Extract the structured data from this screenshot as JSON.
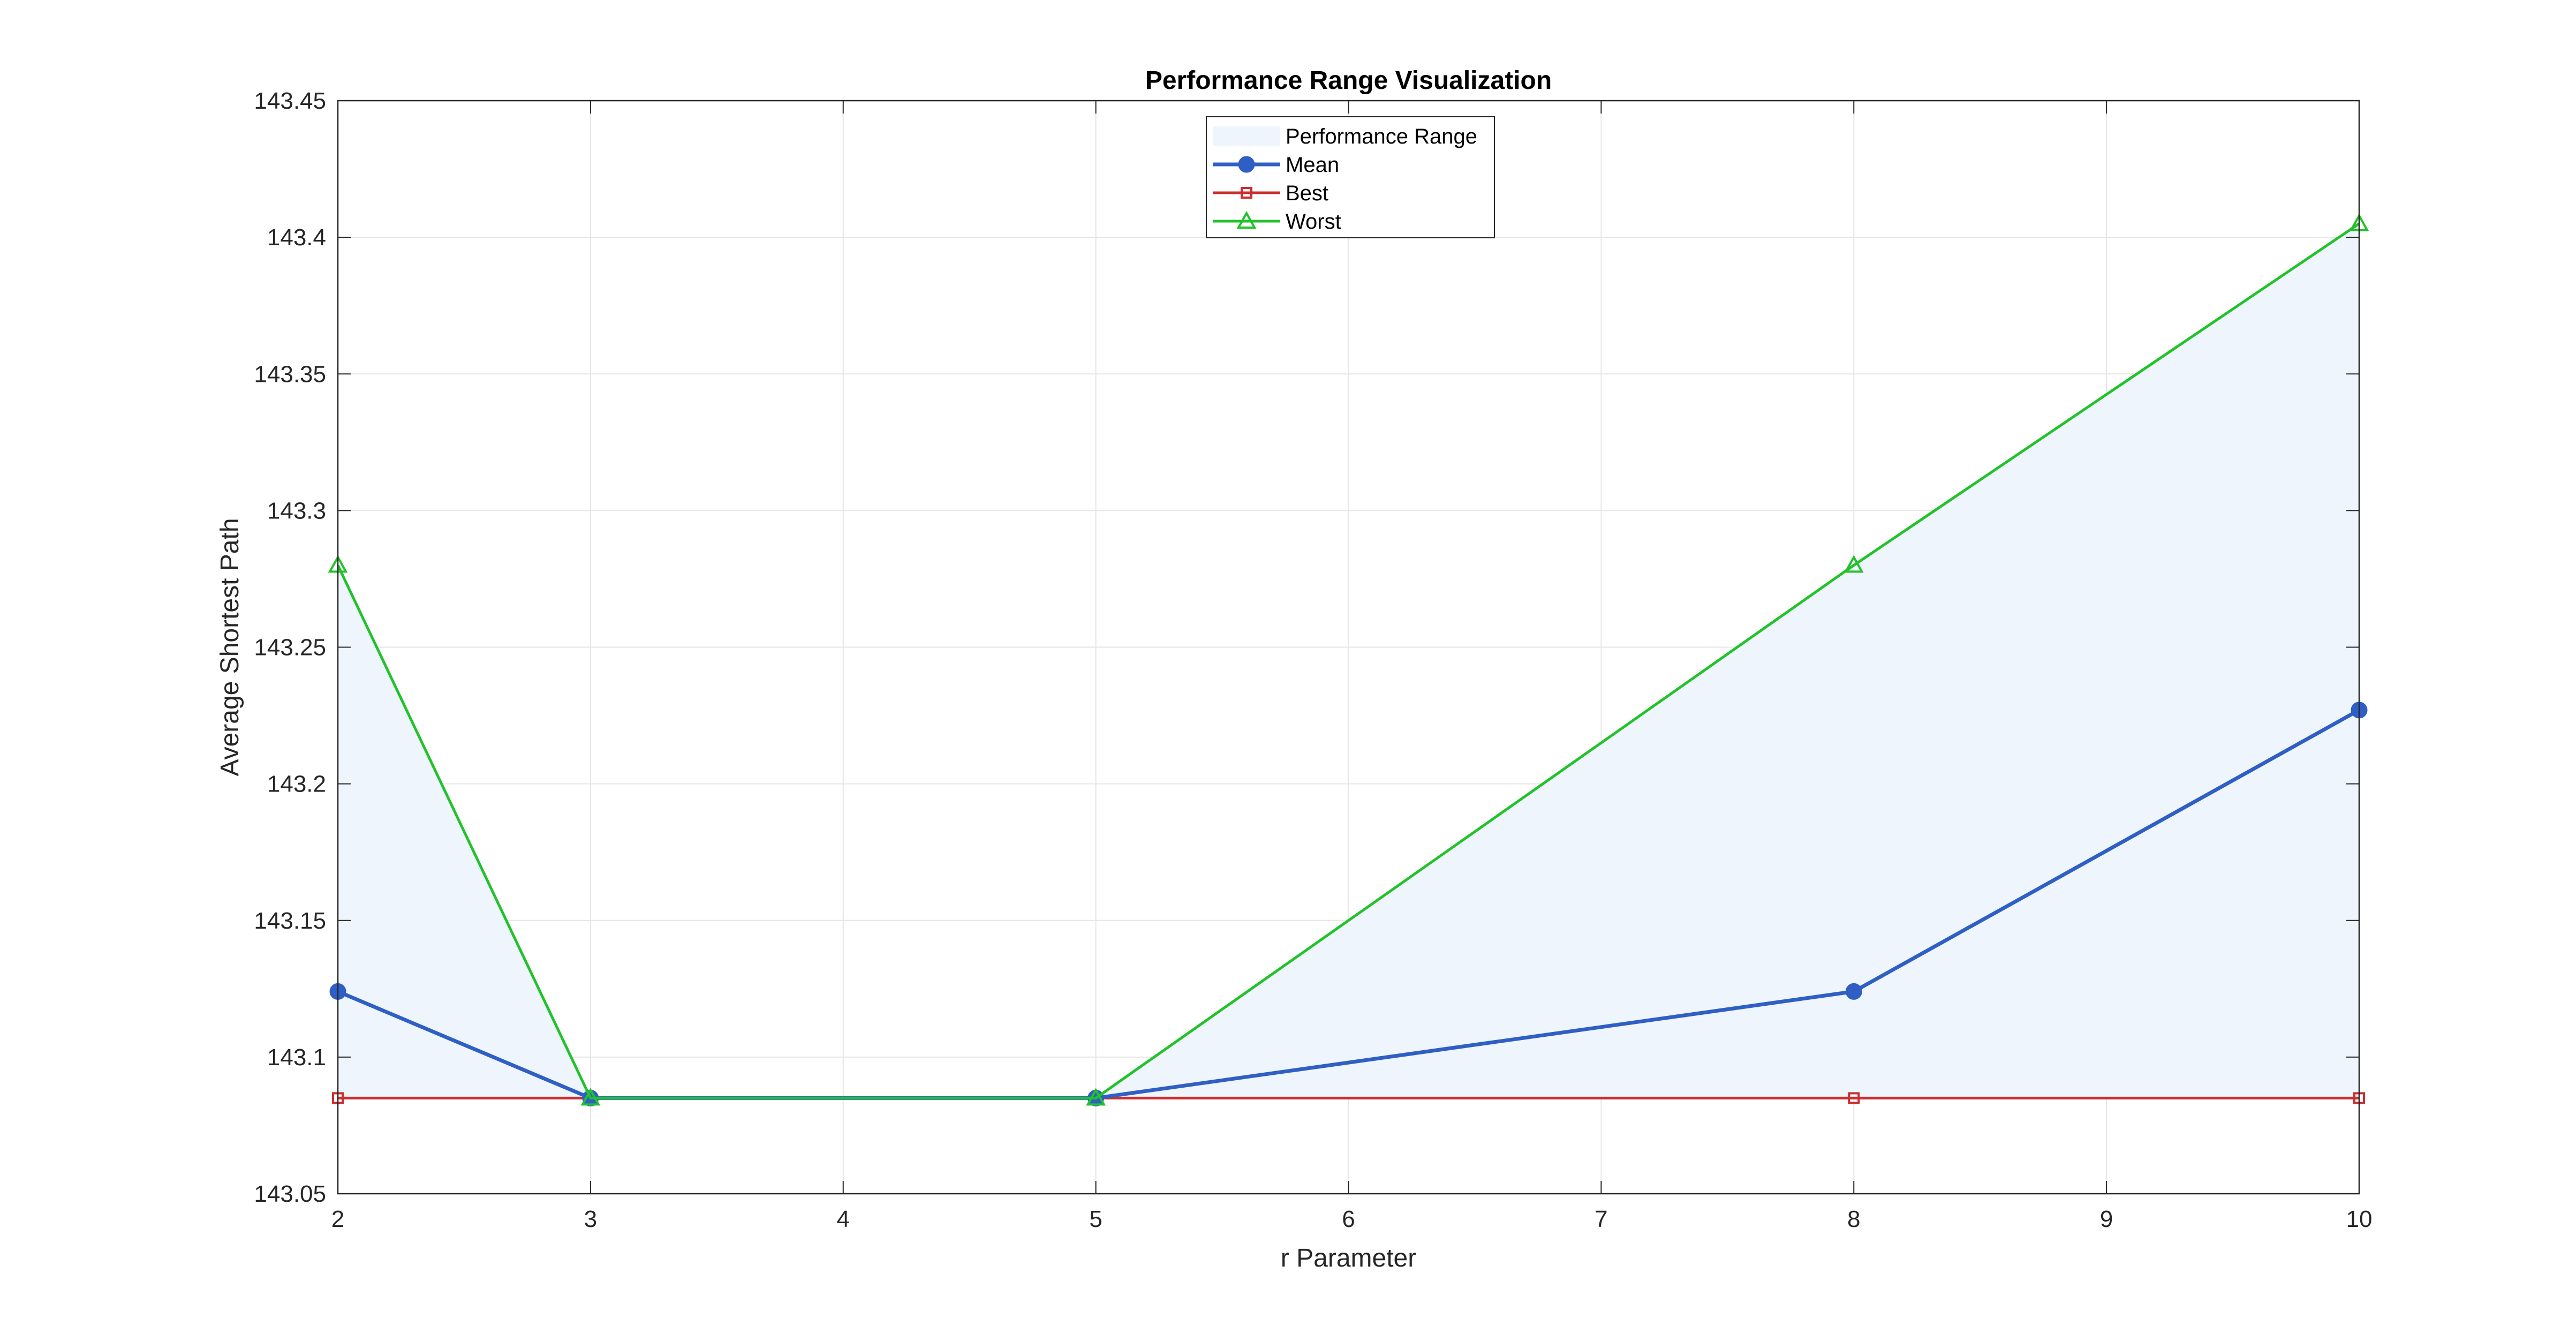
{
  "chart_data": {
    "type": "line",
    "title": "Performance Range Visualization",
    "xlabel": "r Parameter",
    "ylabel": "Average Shortest Path",
    "xlim": [
      2,
      10
    ],
    "ylim": [
      143.05,
      143.45
    ],
    "xticks": [
      "2",
      "3",
      "4",
      "5",
      "6",
      "7",
      "8",
      "9",
      "10"
    ],
    "yticks": [
      "143.05",
      "143.1",
      "143.15",
      "143.2",
      "143.25",
      "143.3",
      "143.35",
      "143.4",
      "143.45"
    ],
    "grid": true,
    "legend_position": "top-center",
    "x": [
      2,
      3,
      5,
      8,
      10
    ],
    "range": {
      "name": "Performance Range",
      "color": "#eef5fc",
      "lower": [
        143.085,
        143.085,
        143.085,
        143.085,
        143.085
      ],
      "upper": [
        143.28,
        143.085,
        143.085,
        143.28,
        143.405
      ]
    },
    "series": [
      {
        "name": "Mean",
        "color": "#2f5fc4",
        "marker": "circle",
        "values": [
          143.124,
          143.085,
          143.085,
          143.124,
          143.227
        ]
      },
      {
        "name": "Best",
        "color": "#cc2e2e",
        "marker": "square",
        "values": [
          143.085,
          143.085,
          143.085,
          143.085,
          143.085
        ]
      },
      {
        "name": "Worst",
        "color": "#22c22a",
        "marker": "triangle",
        "values": [
          143.28,
          143.085,
          143.085,
          143.28,
          143.405
        ]
      }
    ]
  }
}
